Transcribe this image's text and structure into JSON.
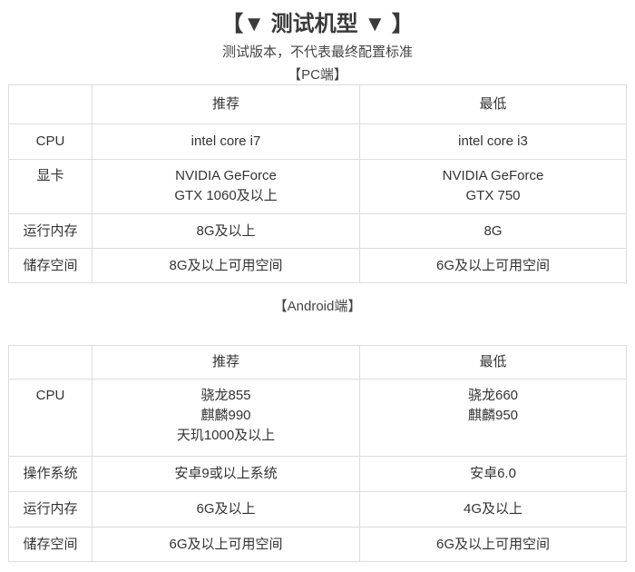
{
  "title": "【▼ 测试机型 ▼ 】",
  "subtitle": "测试版本，不代表最终配置标准",
  "pc": {
    "label": "【PC端】",
    "headers": [
      "",
      "推荐",
      "最低"
    ],
    "rows": [
      {
        "label": "CPU",
        "rec": [
          "intel core i7"
        ],
        "min": [
          "intel core i3"
        ]
      },
      {
        "label": "显卡",
        "rec": [
          "NVIDIA GeForce",
          "GTX 1060及以上"
        ],
        "min": [
          "NVIDIA GeForce",
          "GTX 750"
        ]
      },
      {
        "label": "运行内存",
        "rec": [
          "8G及以上"
        ],
        "min": [
          "8G"
        ]
      },
      {
        "label": "储存空间",
        "rec": [
          "8G及以上可用空间"
        ],
        "min": [
          "6G及以上可用空间"
        ]
      }
    ]
  },
  "android": {
    "label": "【Android端】",
    "headers": [
      "",
      "推荐",
      "最低"
    ],
    "rows": [
      {
        "label": "CPU",
        "rec": [
          "骁龙855",
          "麒麟990",
          "天玑1000及以上"
        ],
        "min": [
          "骁龙660",
          "麒麟950"
        ]
      },
      {
        "label": "操作系统",
        "rec": [
          "安卓9或以上系统"
        ],
        "min": [
          "安卓6.0"
        ]
      },
      {
        "label": "运行内存",
        "rec": [
          "6G及以上"
        ],
        "min": [
          "4G及以上"
        ]
      },
      {
        "label": "储存空间",
        "rec": [
          "6G及以上可用空间"
        ],
        "min": [
          "6G及以上可用空间"
        ]
      }
    ]
  }
}
